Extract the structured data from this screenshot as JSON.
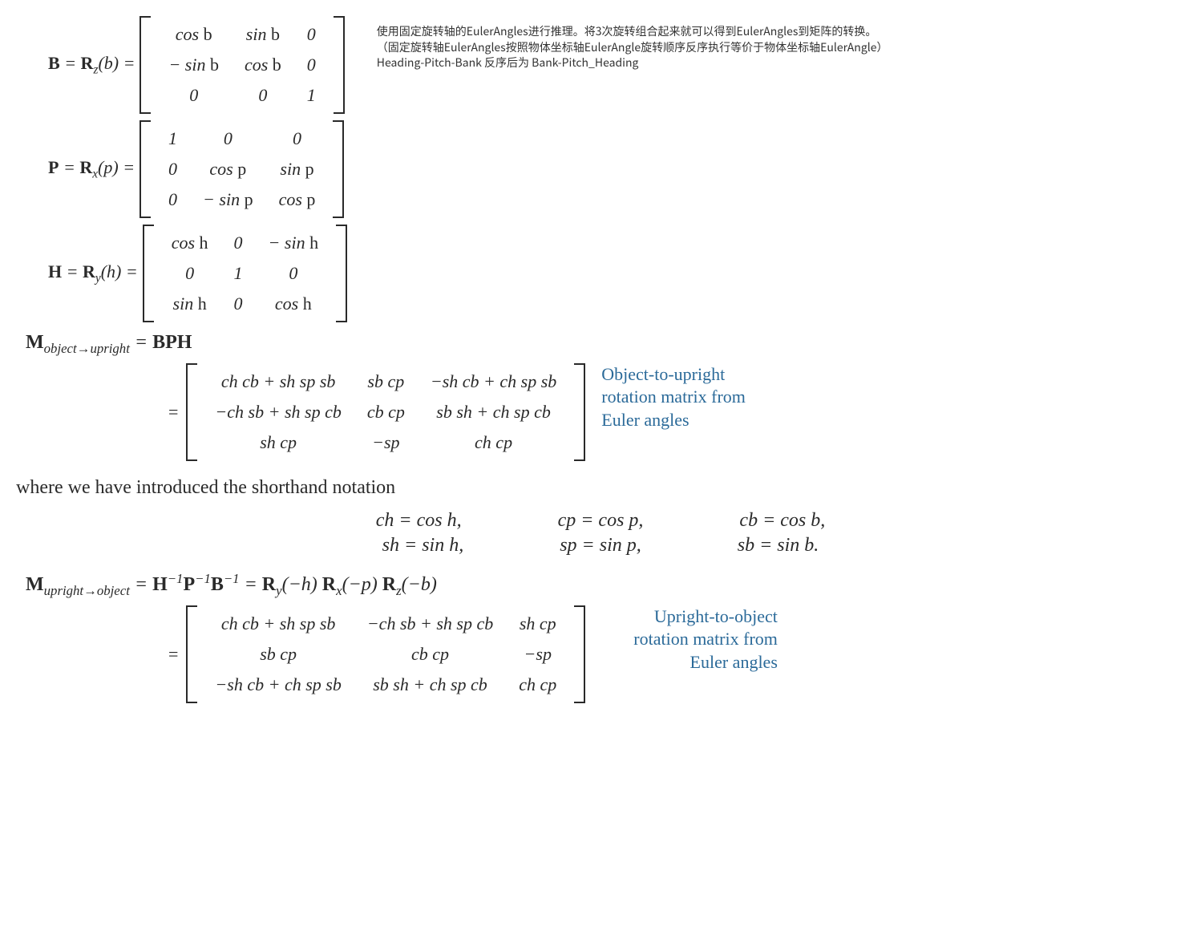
{
  "eqB": {
    "lhs_html": "<span class='bold'>B</span> = <span class='bold'>R</span><span class='sub'>z</span>(<span>b</span>) =",
    "m": [
      [
        "cos <span class='fn'>b</span>",
        "sin <span class='fn'>b</span>",
        "0"
      ],
      [
        "− sin <span class='fn'>b</span>",
        "cos <span class='fn'>b</span>",
        "0"
      ],
      [
        "0",
        "0",
        "1"
      ]
    ]
  },
  "eqP": {
    "lhs_html": "<span class='bold'>P</span> = <span class='bold'>R</span><span class='sub'>x</span>(<span>p</span>) =",
    "m": [
      [
        "1",
        "0",
        "0"
      ],
      [
        "0",
        "cos <span class='fn'>p</span>",
        "sin <span class='fn'>p</span>"
      ],
      [
        "0",
        "− sin <span class='fn'>p</span>",
        "cos <span class='fn'>p</span>"
      ]
    ]
  },
  "eqH": {
    "lhs_html": "<span class='bold'>H</span> = <span class='bold'>R</span><span class='sub'>y</span>(<span>h</span>) =",
    "m": [
      [
        "cos <span class='fn'>h</span>",
        "0",
        "− sin <span class='fn'>h</span>"
      ],
      [
        "0",
        "1",
        "0"
      ],
      [
        "sin <span class='fn'>h</span>",
        "0",
        "cos <span class='fn'>h</span>"
      ]
    ]
  },
  "annot": {
    "line1": "使用固定旋转轴的EulerAngles进行推理。将3次旋转组合起来就可以得到EulerAngles到矩阵的转换。",
    "line2": "（固定旋转轴EulerAngles按照物体坐标轴EulerAngle旋转顺序反序执行等价于物体坐标轴EulerAngle）",
    "line3": "Heading-Pitch-Bank 反序后为 Bank-Pitch_Heading"
  },
  "eqM1": {
    "line1_html": "<span class='bold'>M</span><span class='sub'>object→upright</span> = <span class='bold'>BPH</span>",
    "m": [
      [
        "ch cb + sh sp sb",
        "sb cp",
        "−sh cb + ch sp sb"
      ],
      [
        "−ch sb + sh sp cb",
        "cb cp",
        "sb sh + ch sp cb"
      ],
      [
        "sh cp",
        "−sp",
        "ch cp"
      ]
    ],
    "caption_l1": "Object-to-upright",
    "caption_l2": "rotation matrix from",
    "caption_l3": "Euler angles"
  },
  "bodytext": "where we have introduced the shorthand notation",
  "shorthand": {
    "row1": {
      "a": "ch = cos h,",
      "b": "cp = cos p,",
      "c": "cb = cos b,"
    },
    "row2": {
      "a": "sh = sin h,",
      "b": "sp = sin p,",
      "c": "sb = sin b."
    }
  },
  "eqM2": {
    "line1_html": "<span class='bold'>M</span><span class='sub'>upright→object</span> = <span class='bold'>H</span><span class='sup'>−1</span><span class='bold'>P</span><span class='sup'>−1</span><span class='bold'>B</span><span class='sup'>−1</span> = <span class='bold'>R</span><span class='sub'>y</span>(−h)&nbsp;<span class='bold'>R</span><span class='sub'>x</span>(−p)&nbsp;<span class='bold'>R</span><span class='sub'>z</span>(−b)",
    "m": [
      [
        "ch cb + sh sp sb",
        "−ch sb + sh sp cb",
        "sh cp"
      ],
      [
        "sb cp",
        "cb cp",
        "−sp"
      ],
      [
        "−sh cb + ch sp sb",
        "sb sh + ch sp cb",
        "ch cp"
      ]
    ],
    "caption_l1": "Upright-to-object",
    "caption_l2": "rotation matrix from",
    "caption_l3": "Euler angles"
  },
  "colors": {
    "caption": "#2b6a99",
    "text": "#2a2a2a",
    "annot": "#333333",
    "bg": "#ffffff"
  }
}
